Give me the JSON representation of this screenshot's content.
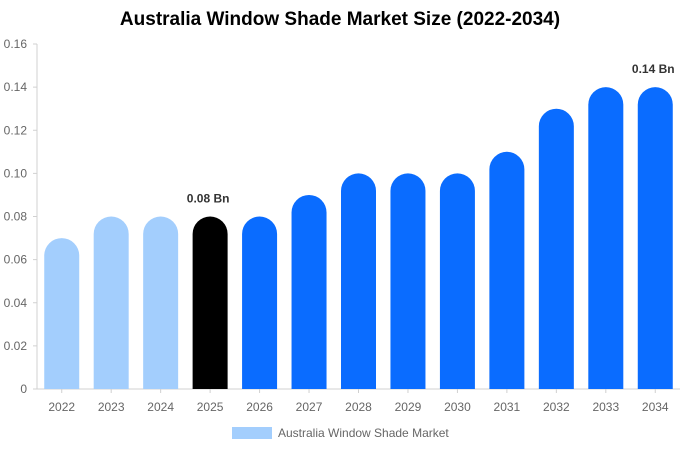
{
  "chart_data": {
    "type": "bar",
    "title": "Australia Window Shade Market Size (2022-2034)",
    "categories": [
      "2022",
      "2023",
      "2024",
      "2025",
      "2026",
      "2027",
      "2028",
      "2029",
      "2030",
      "2031",
      "2032",
      "2033",
      "2034"
    ],
    "series": [
      {
        "name": "Australia Window Shade Market",
        "values": [
          0.07,
          0.08,
          0.08,
          0.08,
          0.08,
          0.09,
          0.1,
          0.1,
          0.1,
          0.11,
          0.13,
          0.14,
          0.14
        ]
      }
    ],
    "bar_colors": [
      "#a3cefd",
      "#a3cefd",
      "#a3cefd",
      "#000000",
      "#0a6cff",
      "#0a6cff",
      "#0a6cff",
      "#0a6cff",
      "#0a6cff",
      "#0a6cff",
      "#0a6cff",
      "#0a6cff",
      "#0a6cff"
    ],
    "legend_color": "#a3cefd",
    "data_labels": [
      {
        "index": 3,
        "text": "0.08 Bn"
      },
      {
        "index": 12,
        "text": "0.14 Bn"
      }
    ],
    "yticks": [
      "0",
      "0.02",
      "0.04",
      "0.06",
      "0.08",
      "0.10",
      "0.12",
      "0.14",
      "0.16"
    ],
    "ylim": [
      0,
      0.16
    ],
    "xlabel": "",
    "ylabel": "",
    "grid": false,
    "legend_position": "bottom"
  }
}
